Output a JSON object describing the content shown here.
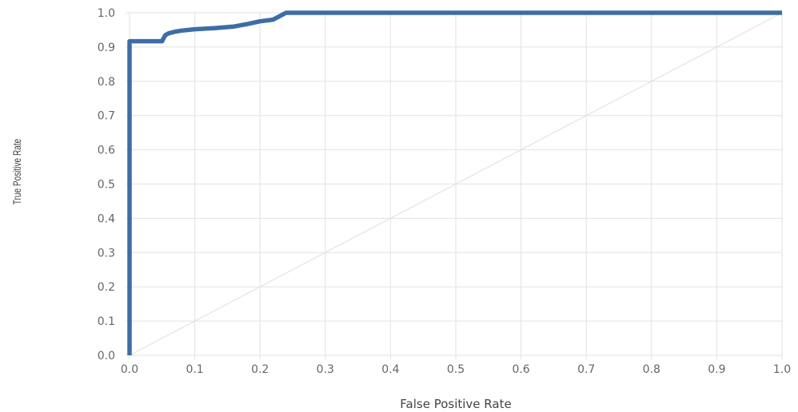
{
  "chart_data": {
    "type": "line",
    "title": "",
    "xlabel": "False Positive Rate",
    "ylabel": "True Positive Rate",
    "xlim": [
      0.0,
      1.0
    ],
    "ylim": [
      0.0,
      1.0
    ],
    "grid": true,
    "x_ticks": [
      "0.0",
      "0.1",
      "0.2",
      "0.3",
      "0.4",
      "0.5",
      "0.6",
      "0.7",
      "0.8",
      "0.9",
      "1.0"
    ],
    "y_ticks": [
      "0.0",
      "0.1",
      "0.2",
      "0.3",
      "0.4",
      "0.5",
      "0.6",
      "0.7",
      "0.8",
      "0.9",
      "1.0"
    ],
    "series": [
      {
        "color": "#3d6da6",
        "x": [
          0.0,
          0.0,
          0.005,
          0.01,
          0.05,
          0.052,
          0.055,
          0.06,
          0.07,
          0.08,
          0.1,
          0.13,
          0.16,
          0.18,
          0.2,
          0.22,
          0.23,
          0.235,
          0.24,
          0.25,
          0.3,
          1.0
        ],
        "y": [
          0.0,
          0.917,
          0.917,
          0.917,
          0.917,
          0.925,
          0.935,
          0.94,
          0.945,
          0.948,
          0.952,
          0.955,
          0.96,
          0.967,
          0.975,
          0.98,
          0.99,
          0.995,
          1.0,
          1.0,
          1.0,
          1.0
        ]
      },
      {
        "color": "#e3e3e3",
        "x": [
          0.0,
          1.0
        ],
        "y": [
          0.0,
          1.0
        ]
      }
    ]
  }
}
